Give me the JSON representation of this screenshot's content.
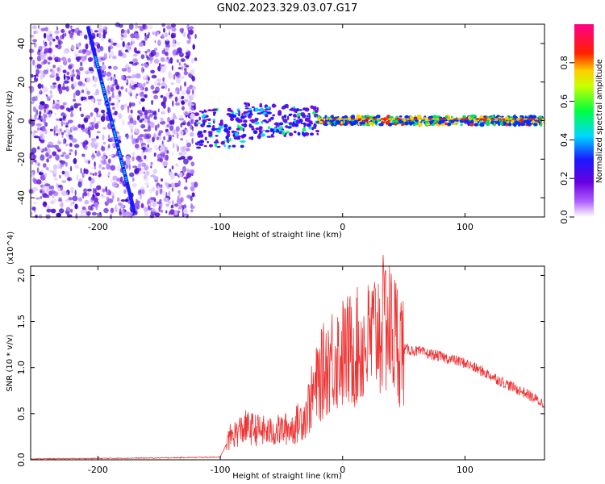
{
  "title": "GN02.2023.329.03.07.G17",
  "chart_data": [
    {
      "type": "heatmap",
      "xlabel": "Height of straight line (km)",
      "ylabel": "Frequency (Hz)",
      "xlim": [
        -255,
        165
      ],
      "ylim": [
        -50,
        50
      ],
      "xticks": [
        -200,
        -100,
        0,
        100
      ],
      "yticks": [
        -40,
        -20,
        0,
        20,
        40
      ],
      "colorbar": {
        "label": "Normalized spectral amplitude",
        "range": [
          0,
          1
        ],
        "ticks": [
          "0.0",
          "0.2",
          "0.4",
          "0.6",
          "0.8"
        ],
        "colors": [
          "#ffffff",
          "#7a00e6",
          "#1a1aff",
          "#00e5ff",
          "#00ff40",
          "#ffff00",
          "#ff2000",
          "#ff0080"
        ]
      },
      "features": [
        {
          "name": "diagonal line",
          "x": [
            -208,
            -170
          ],
          "y": [
            48,
            -48
          ]
        },
        {
          "name": "noise region",
          "x": [
            -255,
            -120
          ],
          "y": [
            -50,
            50
          ]
        },
        {
          "name": "signal band",
          "x": [
            -120,
            165
          ],
          "y": [
            -10,
            10
          ]
        }
      ]
    },
    {
      "type": "line",
      "xlabel": "Height of straight line (km)",
      "ylabel": "SNR (10 * v/v)",
      "y_multiplier": "(x10^4)",
      "xlim": [
        -255,
        165
      ],
      "ylim": [
        0,
        2.1
      ],
      "xticks": [
        -200,
        -100,
        0,
        100
      ],
      "yticks": [
        "0.0",
        "0.5",
        "1.0",
        "1.5",
        "2.0"
      ],
      "series_color": "#ee3333",
      "envelope": {
        "x": [
          -255,
          -200,
          -150,
          -100,
          -92,
          -80,
          -60,
          -40,
          -30,
          -20,
          -10,
          0,
          10,
          20,
          30,
          40,
          50,
          60,
          80,
          100,
          120,
          140,
          150,
          165
        ],
        "y": [
          0.01,
          0.015,
          0.02,
          0.03,
          0.25,
          0.35,
          0.3,
          0.35,
          0.5,
          0.85,
          1.1,
          1.15,
          1.2,
          1.25,
          1.45,
          1.4,
          1.2,
          1.18,
          1.12,
          1.05,
          0.92,
          0.78,
          0.72,
          0.6
        ]
      },
      "peak": {
        "x": 35,
        "y": 2.05
      }
    }
  ]
}
